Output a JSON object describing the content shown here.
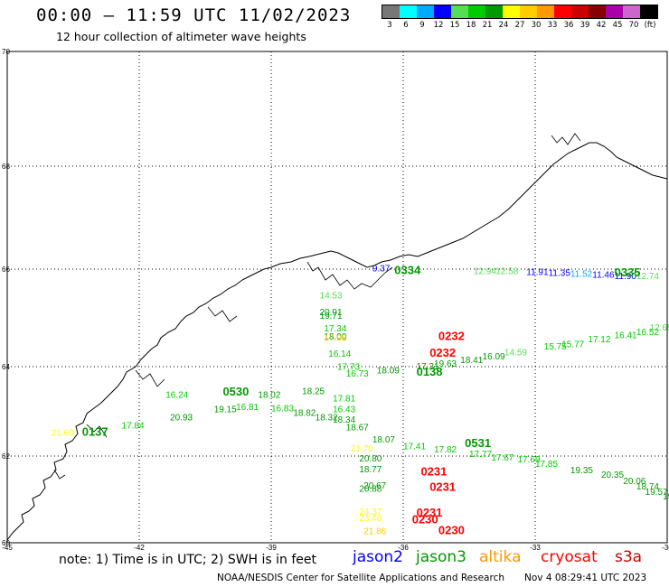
{
  "header": {
    "title": "00:00 – 11:59 UTC 11/02/2023",
    "subtitle": "12 hour collection of altimeter wave heights"
  },
  "scale": {
    "unit_label": "(ft)",
    "colors": [
      "#777777",
      "#00ffff",
      "#00aaff",
      "#0000ff",
      "#55dd55",
      "#00cc00",
      "#009900",
      "#ffff00",
      "#ffcc00",
      "#ff9900",
      "#ff0000",
      "#cc0000",
      "#880000",
      "#aa00aa",
      "#cc66cc",
      "#000000"
    ],
    "tick_labels": [
      "3",
      "6",
      "9",
      "12",
      "15",
      "18",
      "21",
      "24",
      "27",
      "30",
      "33",
      "36",
      "39",
      "42",
      "45",
      "70"
    ]
  },
  "axes": {
    "lat_labels": [
      "70",
      "68",
      "66",
      "64",
      "62",
      "60"
    ],
    "lon_labels": [
      "-45",
      "-42",
      "-39",
      "-36",
      "-33",
      "-30"
    ]
  },
  "legend": {
    "note": "note:  1) Time is in UTC;  2) SWH is in feet",
    "satellites": [
      {
        "name": "jason2",
        "color": "#0000ff"
      },
      {
        "name": "jason3",
        "color": "#009900"
      },
      {
        "name": "altika",
        "color": "#ff9900"
      },
      {
        "name": "cryosat",
        "color": "#ff0000"
      },
      {
        "name": "s3a",
        "color": "#cc0000"
      }
    ]
  },
  "footer": {
    "credit": "NOAA/NESDIS Center for Satellite Applications and Research",
    "timestamp": "Nov  4 08:29:41 UTC 2023"
  },
  "chart_data": {
    "type": "scatter",
    "xlim": [
      -45,
      -30
    ],
    "ylim": [
      60,
      70
    ],
    "time_labels": [
      {
        "text": "0334",
        "lon": -36.2,
        "lat": 65.9,
        "color": "#009900"
      },
      {
        "text": "0335",
        "lon": -31.2,
        "lat": 65.85,
        "color": "#009900"
      },
      {
        "text": "0232",
        "lon": -35.2,
        "lat": 64.55,
        "color": "#ff0000"
      },
      {
        "text": "0232",
        "lon": -35.4,
        "lat": 64.2,
        "color": "#ff0000"
      },
      {
        "text": "0138",
        "lon": -35.7,
        "lat": 63.8,
        "color": "#009900"
      },
      {
        "text": "0530",
        "lon": -40.1,
        "lat": 63.35,
        "color": "#009900"
      },
      {
        "text": "0137",
        "lon": -43.3,
        "lat": 62.45,
        "color": "#009900"
      },
      {
        "text": "0531",
        "lon": -34.6,
        "lat": 62.2,
        "color": "#009900"
      },
      {
        "text": "0231",
        "lon": -35.6,
        "lat": 61.55,
        "color": "#ff0000"
      },
      {
        "text": "0231",
        "lon": -35.4,
        "lat": 61.2,
        "color": "#ff0000"
      },
      {
        "text": "0231",
        "lon": -35.7,
        "lat": 60.6,
        "color": "#ff0000"
      },
      {
        "text": "0230",
        "lon": -35.8,
        "lat": 60.45,
        "color": "#ff0000"
      },
      {
        "text": "0230",
        "lon": -35.2,
        "lat": 60.2,
        "color": "#ff0000"
      }
    ],
    "points": [
      {
        "text": "9.37",
        "lon": -36.7,
        "lat": 65.95,
        "color": "#0000ff"
      },
      {
        "text": "12.94",
        "lon": -34.4,
        "lat": 65.9,
        "color": "#55dd55"
      },
      {
        "text": "12.58",
        "lon": -33.9,
        "lat": 65.9,
        "color": "#55dd55"
      },
      {
        "text": "11.91",
        "lon": -33.2,
        "lat": 65.88,
        "color": "#0000ff"
      },
      {
        "text": "11.35",
        "lon": -32.7,
        "lat": 65.86,
        "color": "#0000ff"
      },
      {
        "text": "11.52",
        "lon": -32.2,
        "lat": 65.84,
        "color": "#00aaff"
      },
      {
        "text": "11.46",
        "lon": -31.7,
        "lat": 65.82,
        "color": "#0000ff"
      },
      {
        "text": "11.90",
        "lon": -31.2,
        "lat": 65.8,
        "color": "#0000ff"
      },
      {
        "text": "12.74",
        "lon": -30.7,
        "lat": 65.8,
        "color": "#55dd55"
      },
      {
        "text": "14.53",
        "lon": -37.9,
        "lat": 65.4,
        "color": "#55dd55"
      },
      {
        "text": "20.91",
        "lon": -37.9,
        "lat": 65.06,
        "color": "#009900"
      },
      {
        "text": "19.71",
        "lon": -37.9,
        "lat": 64.98,
        "color": "#009900"
      },
      {
        "text": "17.34",
        "lon": -37.8,
        "lat": 64.72,
        "color": "#00cc00"
      },
      {
        "text": "18.00",
        "lon": -37.8,
        "lat": 64.56,
        "color": "#009900"
      },
      {
        "text": "17.98",
        "lon": -37.8,
        "lat": 64.53,
        "color": "#ffcc00"
      },
      {
        "text": "16.14",
        "lon": -37.7,
        "lat": 64.2,
        "color": "#00cc00"
      },
      {
        "text": "17.73",
        "lon": -37.5,
        "lat": 63.93,
        "color": "#00cc00"
      },
      {
        "text": "18.09",
        "lon": -36.6,
        "lat": 63.85,
        "color": "#009900"
      },
      {
        "text": "16.73",
        "lon": -37.3,
        "lat": 63.78,
        "color": "#00cc00"
      },
      {
        "text": "17.31",
        "lon": -35.7,
        "lat": 63.94,
        "color": "#009900"
      },
      {
        "text": "19.63",
        "lon": -35.3,
        "lat": 64.0,
        "color": "#009900"
      },
      {
        "text": "18.41",
        "lon": -34.7,
        "lat": 64.07,
        "color": "#009900"
      },
      {
        "text": "16.09",
        "lon": -34.2,
        "lat": 64.15,
        "color": "#009900"
      },
      {
        "text": "14.59",
        "lon": -33.7,
        "lat": 64.23,
        "color": "#55dd55"
      },
      {
        "text": "15.75",
        "lon": -32.8,
        "lat": 64.35,
        "color": "#00cc00"
      },
      {
        "text": "15.77",
        "lon": -32.4,
        "lat": 64.4,
        "color": "#00cc00"
      },
      {
        "text": "17.12",
        "lon": -31.8,
        "lat": 64.5,
        "color": "#00cc00"
      },
      {
        "text": "16.41",
        "lon": -31.2,
        "lat": 64.58,
        "color": "#00cc00"
      },
      {
        "text": "16.52",
        "lon": -30.7,
        "lat": 64.65,
        "color": "#00cc00"
      },
      {
        "text": "12.65",
        "lon": -30.4,
        "lat": 64.74,
        "color": "#55dd55"
      },
      {
        "text": "16.24",
        "lon": -41.4,
        "lat": 63.3,
        "color": "#00cc00"
      },
      {
        "text": "18.02",
        "lon": -39.3,
        "lat": 63.3,
        "color": "#009900"
      },
      {
        "text": "18.25",
        "lon": -38.3,
        "lat": 63.38,
        "color": "#009900"
      },
      {
        "text": "17.81",
        "lon": -37.6,
        "lat": 63.22,
        "color": "#00cc00"
      },
      {
        "text": "16.43",
        "lon": -37.6,
        "lat": 62.98,
        "color": "#00cc00"
      },
      {
        "text": "19.15",
        "lon": -40.3,
        "lat": 62.98,
        "color": "#009900"
      },
      {
        "text": "16.81",
        "lon": -39.8,
        "lat": 63.03,
        "color": "#00cc00"
      },
      {
        "text": "16.83",
        "lon": -39.0,
        "lat": 63.0,
        "color": "#00cc00"
      },
      {
        "text": "18.82",
        "lon": -38.5,
        "lat": 62.9,
        "color": "#009900"
      },
      {
        "text": "18.32",
        "lon": -38.0,
        "lat": 62.8,
        "color": "#009900"
      },
      {
        "text": "18.34",
        "lon": -37.6,
        "lat": 62.75,
        "color": "#009900"
      },
      {
        "text": "18.67",
        "lon": -37.3,
        "lat": 62.58,
        "color": "#009900"
      },
      {
        "text": "20.93",
        "lon": -41.3,
        "lat": 62.8,
        "color": "#009900"
      },
      {
        "text": "17.84",
        "lon": -42.4,
        "lat": 62.62,
        "color": "#00cc00"
      },
      {
        "text": "21.60",
        "lon": -44.0,
        "lat": 62.45,
        "color": "#ffff00"
      },
      {
        "text": "18.07",
        "lon": -36.7,
        "lat": 62.3,
        "color": "#009900"
      },
      {
        "text": "21.70",
        "lon": -37.2,
        "lat": 62.1,
        "color": "#ffff00"
      },
      {
        "text": "17.41",
        "lon": -36.0,
        "lat": 62.15,
        "color": "#00cc00"
      },
      {
        "text": "17.82",
        "lon": -35.3,
        "lat": 62.08,
        "color": "#00cc00"
      },
      {
        "text": "17.77",
        "lon": -34.5,
        "lat": 61.98,
        "color": "#00cc00"
      },
      {
        "text": "17.67",
        "lon": -34.0,
        "lat": 61.9,
        "color": "#00cc00"
      },
      {
        "text": "17.69",
        "lon": -33.4,
        "lat": 61.85,
        "color": "#00cc00"
      },
      {
        "text": "17.85",
        "lon": -33.0,
        "lat": 61.75,
        "color": "#00cc00"
      },
      {
        "text": "20.80",
        "lon": -37.0,
        "lat": 61.88,
        "color": "#009900"
      },
      {
        "text": "19.35",
        "lon": -32.2,
        "lat": 61.6,
        "color": "#009900"
      },
      {
        "text": "18.77",
        "lon": -37.0,
        "lat": 61.62,
        "color": "#009900"
      },
      {
        "text": "20.35",
        "lon": -31.5,
        "lat": 61.5,
        "color": "#009900"
      },
      {
        "text": "20.06",
        "lon": -31.0,
        "lat": 61.35,
        "color": "#009900"
      },
      {
        "text": "18.74",
        "lon": -30.7,
        "lat": 61.23,
        "color": "#009900"
      },
      {
        "text": "20.67",
        "lon": -36.9,
        "lat": 61.25,
        "color": "#009900"
      },
      {
        "text": "20.88",
        "lon": -37.0,
        "lat": 61.18,
        "color": "#009900"
      },
      {
        "text": "19.57",
        "lon": -30.5,
        "lat": 61.1,
        "color": "#009900"
      },
      {
        "text": "19.83",
        "lon": -30.1,
        "lat": 61.0,
        "color": "#009900"
      },
      {
        "text": "24.37",
        "lon": -37.0,
        "lat": 60.65,
        "color": "#ffff00"
      },
      {
        "text": "23.46",
        "lon": -37.0,
        "lat": 60.5,
        "color": "#ffff00"
      },
      {
        "text": "21.86",
        "lon": -36.9,
        "lat": 60.2,
        "color": "#ffcc00"
      }
    ]
  }
}
